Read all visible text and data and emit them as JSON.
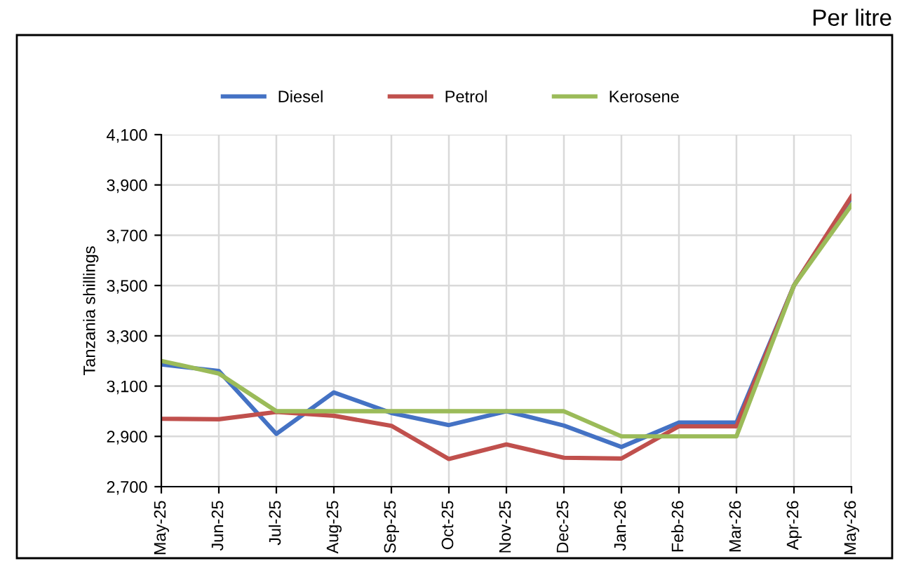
{
  "chart_data": {
    "type": "line",
    "ylabel": "Tanzania shillings",
    "annotations": [
      "Per litre"
    ],
    "categories": [
      "May-25",
      "Jun-25",
      "Jul-25",
      "Aug-25",
      "Sep-25",
      "Oct-25",
      "Nov-25",
      "Dec-25",
      "Jan-26",
      "Feb-26",
      "Mar-26",
      "Apr-26",
      "May-26"
    ],
    "series": [
      {
        "name": "Diesel",
        "color": "#4472c4",
        "values": [
          3186,
          3160,
          2910,
          3075,
          2993,
          2945,
          3000,
          2943,
          2858,
          2955,
          2955,
          3500,
          3850
        ]
      },
      {
        "name": "Petrol",
        "color": "#c0504d",
        "values": [
          2970,
          2968,
          2997,
          2982,
          2942,
          2810,
          2868,
          2815,
          2812,
          2940,
          2940,
          3500,
          3855
        ]
      },
      {
        "name": "Kerosene",
        "color": "#9bbb59",
        "values": [
          3200,
          3150,
          3000,
          3000,
          3000,
          3000,
          3000,
          3000,
          2900,
          2900,
          2900,
          3500,
          3820
        ]
      }
    ],
    "ylim": [
      2700,
      4100
    ],
    "yticks": [
      {
        "value": 2700,
        "label": "2,700"
      },
      {
        "value": 2900,
        "label": "2,900"
      },
      {
        "value": 3100,
        "label": "3,100"
      },
      {
        "value": 3300,
        "label": "3,300"
      },
      {
        "value": 3500,
        "label": "3,500"
      },
      {
        "value": 3700,
        "label": "3,700"
      },
      {
        "value": 3900,
        "label": "3,900"
      },
      {
        "value": 4100,
        "label": "4,100"
      }
    ],
    "grid": true,
    "legend": "top",
    "marker": "none",
    "line_style": "solid"
  }
}
